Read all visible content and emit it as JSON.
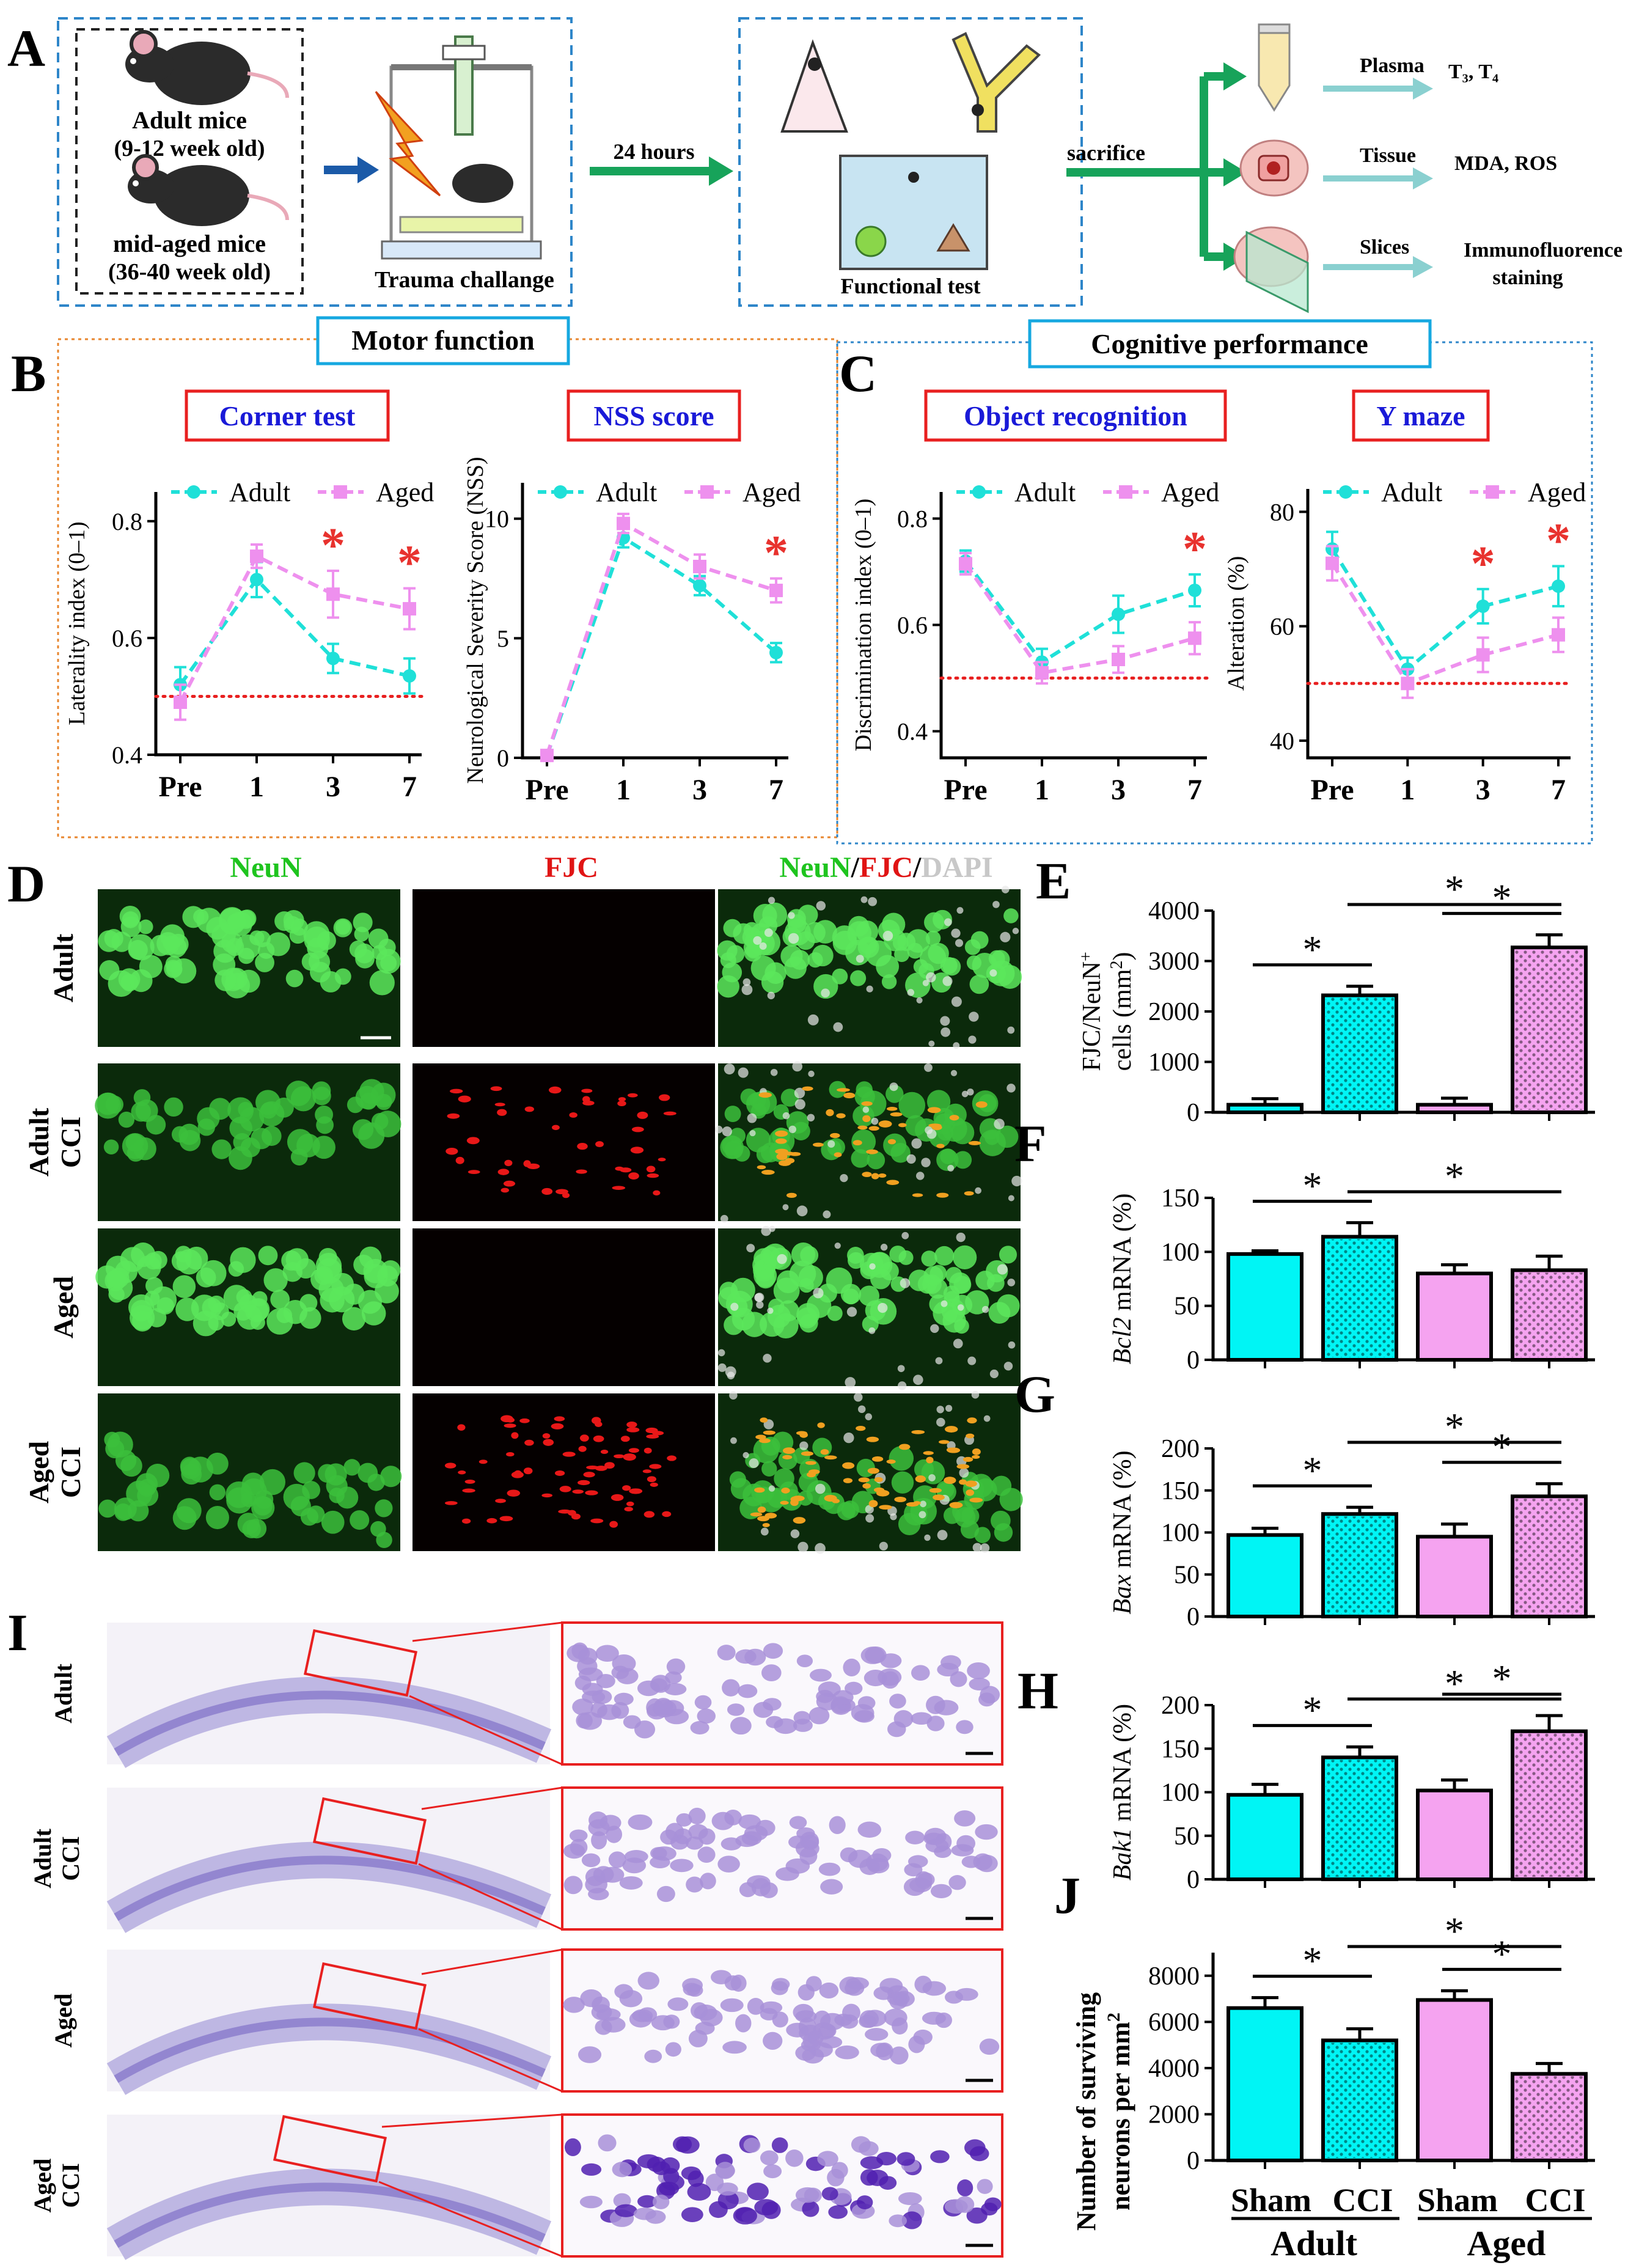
{
  "panel_a": {
    "letter": "A",
    "adult_mice_line1": "Adult mice",
    "adult_mice_line2": "(9-12 week old)",
    "midaged_line1": "mid-aged mice",
    "midaged_line2": "(36-40 week old)",
    "trauma": "Trauma challange",
    "hours": "24 hours",
    "functional": "Functional test",
    "sacrifice": "sacrifice",
    "plasma": "Plasma",
    "t3t4": "T₃, T₄",
    "tissue": "Tissue",
    "mda": "MDA, ROS",
    "slices": "Slices",
    "immuno1": "Immunofluorence",
    "immuno2": "staining"
  },
  "panel_b": {
    "letter": "B",
    "section": "Motor function"
  },
  "panel_c": {
    "letter": "C",
    "section": "Cognitive performance"
  },
  "panel_d": {
    "letter": "D",
    "col_neun": "NeuN",
    "col_fjc": "FJC",
    "merge_neun": "NeuN",
    "merge_sep1": "/",
    "merge_fjc": "FJC",
    "merge_sep2": "/",
    "merge_dapi": "DAPI",
    "rows": [
      {
        "line1": "Adult",
        "line2": ""
      },
      {
        "line1": "Adult",
        "line2": "CCI"
      },
      {
        "line1": "Aged",
        "line2": ""
      },
      {
        "line1": "Aged",
        "line2": "CCI"
      }
    ]
  },
  "panel_i": {
    "letter": "I",
    "rows": [
      {
        "line1": "Adult",
        "line2": ""
      },
      {
        "line1": "Adult",
        "line2": "CCI"
      },
      {
        "line1": "Aged",
        "line2": ""
      },
      {
        "line1": "Aged",
        "line2": "CCI"
      }
    ]
  },
  "group_axis": {
    "sham1": "Sham",
    "cci1": "CCI",
    "sham2": "Sham",
    "cci2": "CCI",
    "adult": "Adult",
    "aged": "Aged"
  },
  "colors": {
    "adult": "#1fe0d8",
    "aged": "#ee90ee",
    "adult_bar": "#00f5f5",
    "aged_bar": "#f5a3f0",
    "star": "#e8322e",
    "neun": "#1ec41e",
    "fjc": "#e01414",
    "dapi": "#c8c8c8"
  },
  "chart_data": [
    {
      "type": "line",
      "title": "Corner test",
      "ylabel": "Laterality index (0–1)",
      "categories": [
        "Pre",
        "1",
        "3",
        "7"
      ],
      "ylim": [
        0.4,
        0.85
      ],
      "yticks": [
        "0.4",
        "0.6",
        "0.8"
      ],
      "reference": 0.5,
      "series": [
        {
          "name": "Adult",
          "values": [
            0.52,
            0.7,
            0.565,
            0.535
          ],
          "errors": [
            0.03,
            0.03,
            0.025,
            0.03
          ]
        },
        {
          "name": "Aged",
          "values": [
            0.49,
            0.74,
            0.675,
            0.65
          ],
          "errors": [
            0.03,
            0.02,
            0.04,
            0.035
          ]
        }
      ],
      "significant": [
        "3",
        "7"
      ],
      "star": "*"
    },
    {
      "type": "line",
      "title": "NSS score",
      "ylabel": "Neurological Severity Score (NSS)",
      "categories": [
        "Pre",
        "1",
        "3",
        "7"
      ],
      "ylim": [
        0,
        11.5
      ],
      "yticks": [
        "0",
        "5",
        "10"
      ],
      "series": [
        {
          "name": "Adult",
          "values": [
            0.1,
            9.2,
            7.2,
            4.4
          ],
          "errors": [
            0.1,
            0.4,
            0.4,
            0.4
          ]
        },
        {
          "name": "Aged",
          "values": [
            0.1,
            9.8,
            8.0,
            7.0
          ],
          "errors": [
            0.1,
            0.4,
            0.5,
            0.5
          ]
        }
      ],
      "significant": [
        "7"
      ],
      "star": "*"
    },
    {
      "type": "line",
      "title": "Object recognition",
      "ylabel": "Discrimination index (0–1)",
      "categories": [
        "Pre",
        "1",
        "3",
        "7"
      ],
      "ylim": [
        0.35,
        0.85
      ],
      "yticks": [
        "0.4",
        "0.6",
        "0.8"
      ],
      "reference": 0.5,
      "series": [
        {
          "name": "Adult",
          "values": [
            0.72,
            0.53,
            0.62,
            0.665
          ],
          "errors": [
            0.02,
            0.025,
            0.035,
            0.03
          ]
        },
        {
          "name": "Aged",
          "values": [
            0.715,
            0.51,
            0.535,
            0.575
          ],
          "errors": [
            0.02,
            0.02,
            0.025,
            0.03
          ]
        }
      ],
      "significant": [
        "7"
      ],
      "star": "*"
    },
    {
      "type": "line",
      "title": "Y maze",
      "ylabel": "Alteration (%)",
      "categories": [
        "Pre",
        "1",
        "3",
        "7"
      ],
      "ylim": [
        37,
        84
      ],
      "yticks": [
        "40",
        "60",
        "80"
      ],
      "reference": 50,
      "series": [
        {
          "name": "Adult",
          "values": [
            73.5,
            52.5,
            63.5,
            67
          ],
          "errors": [
            3,
            2,
            3,
            3.5
          ]
        },
        {
          "name": "Aged",
          "values": [
            71,
            50,
            55,
            58.5
          ],
          "errors": [
            3,
            2.5,
            3,
            3
          ]
        }
      ],
      "significant": [
        "3",
        "7"
      ],
      "star": "*"
    },
    {
      "type": "bar",
      "panel": "E",
      "ylabel_main": "FJC/NeuN",
      "ylabel_sup": "+",
      "ylabel_line2": "cells (mm",
      "ylabel_sup2": "2",
      "ylabel_end": ")",
      "categories": [
        "Adult Sham",
        "Adult CCI",
        "Aged Sham",
        "Aged CCI"
      ],
      "values": [
        150,
        2320,
        150,
        3270
      ],
      "errors": [
        120,
        180,
        130,
        250
      ],
      "ylim": [
        0,
        4000
      ],
      "yticks": [
        "0",
        "1000",
        "2000",
        "3000",
        "4000"
      ],
      "significance": [
        [
          0,
          1
        ],
        [
          1,
          3
        ],
        [
          2,
          3
        ]
      ],
      "star": "*"
    },
    {
      "type": "bar",
      "panel": "F",
      "ylabel_gene": "Bcl2",
      "ylabel_rest": " mRNA (%)",
      "categories": [
        "Adult Sham",
        "Adult CCI",
        "Aged Sham",
        "Aged CCI"
      ],
      "values": [
        98,
        114,
        80,
        83
      ],
      "errors": [
        3,
        13,
        8,
        13
      ],
      "ylim": [
        0,
        150
      ],
      "yticks": [
        "0",
        "50",
        "100",
        "150"
      ],
      "significance": [
        [
          0,
          1
        ],
        [
          1,
          3
        ]
      ],
      "star": "*"
    },
    {
      "type": "bar",
      "panel": "G",
      "ylabel_gene": "Bax",
      "ylabel_rest": " mRNA (%)",
      "categories": [
        "Adult Sham",
        "Adult CCI",
        "Aged Sham",
        "Aged CCI"
      ],
      "values": [
        97,
        122,
        95,
        143
      ],
      "errors": [
        8,
        8,
        15,
        15
      ],
      "ylim": [
        0,
        200
      ],
      "yticks": [
        "0",
        "50",
        "100",
        "150",
        "200"
      ],
      "significance": [
        [
          0,
          1
        ],
        [
          1,
          3
        ],
        [
          2,
          3
        ]
      ],
      "star": "*"
    },
    {
      "type": "bar",
      "panel": "H",
      "ylabel_gene": "Bak1",
      "ylabel_rest": " mRNA (%)",
      "categories": [
        "Adult Sham",
        "Adult CCI",
        "Aged Sham",
        "Aged CCI"
      ],
      "values": [
        97,
        140,
        102,
        170
      ],
      "errors": [
        12,
        12,
        12,
        18
      ],
      "ylim": [
        0,
        200
      ],
      "yticks": [
        "0",
        "50",
        "100",
        "150",
        "200"
      ],
      "significance": [
        [
          0,
          1
        ],
        [
          1,
          3
        ],
        [
          2,
          3
        ]
      ],
      "star": "*"
    },
    {
      "type": "bar",
      "panel": "J",
      "ylabel_line1": "Number of surviving",
      "ylabel_line2": "neurons per mm",
      "ylabel_sup": "2",
      "categories": [
        "Adult Sham",
        "Adult CCI",
        "Aged Sham",
        "Aged CCI"
      ],
      "values": [
        6600,
        5200,
        6950,
        3750
      ],
      "errors": [
        450,
        500,
        400,
        450
      ],
      "ylim": [
        0,
        9000
      ],
      "yticks": [
        "0",
        "2000",
        "4000",
        "6000",
        "8000"
      ],
      "significance": [
        [
          0,
          1
        ],
        [
          1,
          3
        ],
        [
          2,
          3
        ]
      ],
      "star": "*"
    }
  ]
}
